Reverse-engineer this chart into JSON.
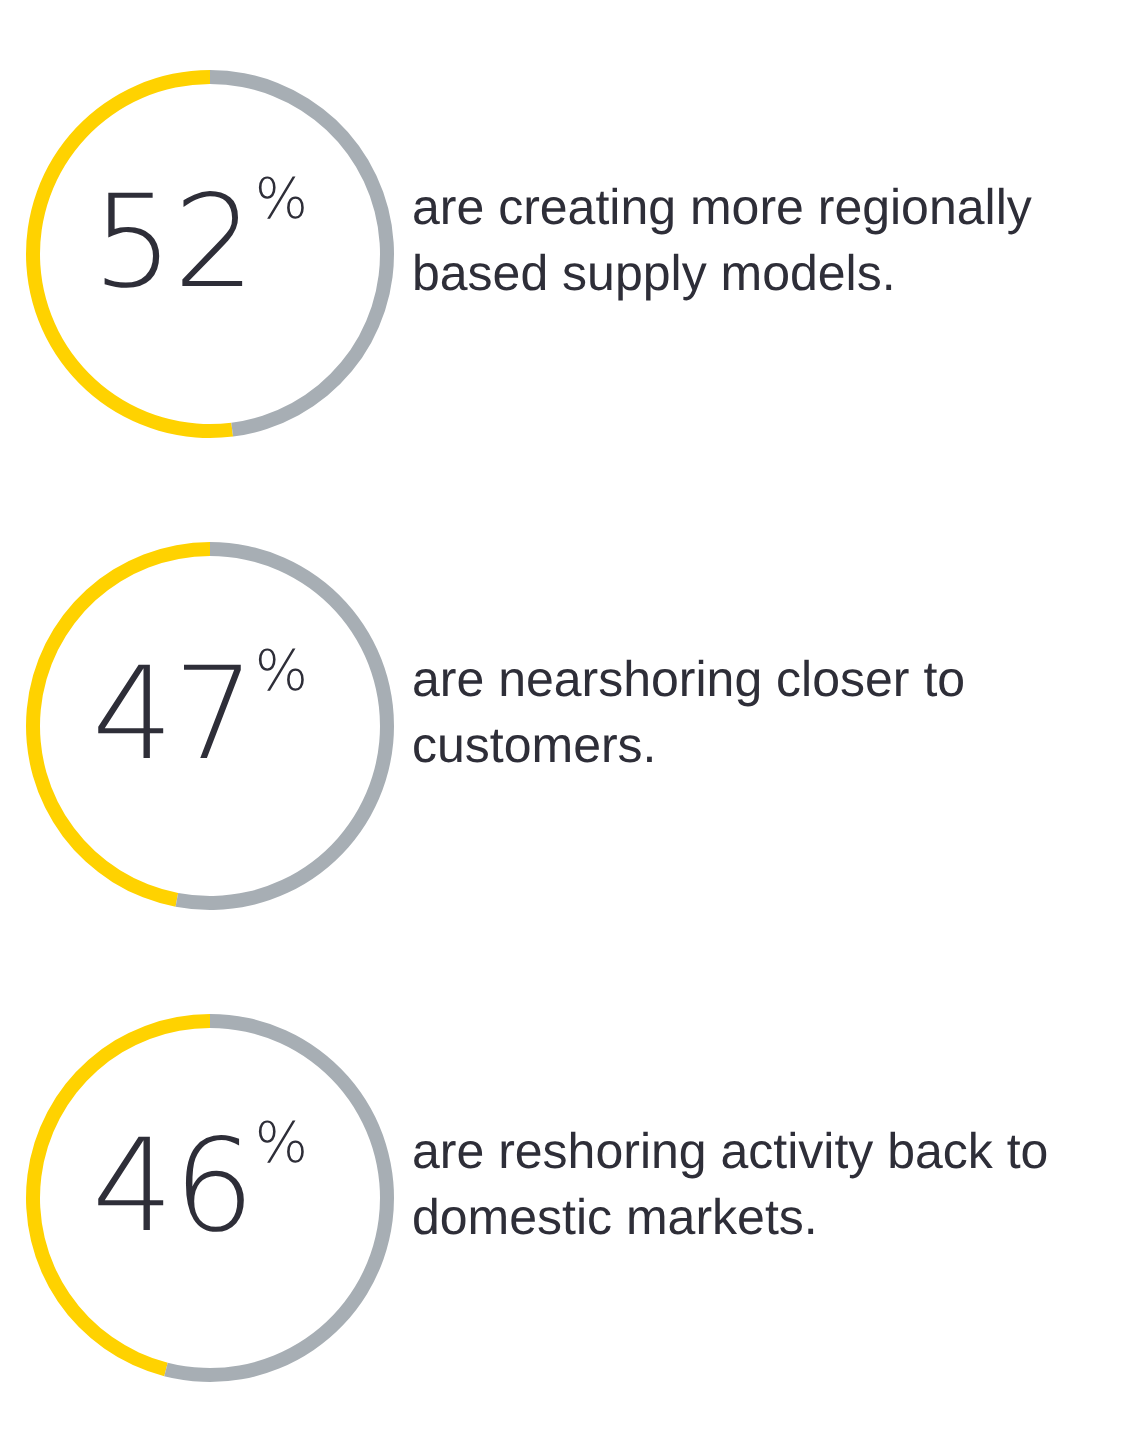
{
  "chart_data": [
    {
      "type": "donut",
      "title": "are creating more regionally based supply models.",
      "categories": [
        null,
        null
      ],
      "values": [
        52,
        48
      ],
      "colors": [
        "#ffd200",
        "#a7aeb4"
      ],
      "value_labels": [
        "52$^{%}$",
        null
      ],
      "legend": false
    },
    {
      "type": "donut",
      "title": "are nearshoring closer to customers.",
      "categories": [
        null,
        null
      ],
      "values": [
        47,
        53
      ],
      "colors": [
        "#ffd200",
        "#a7aeb4"
      ],
      "value_labels": [
        "47$^{%}$",
        null
      ],
      "legend": false
    },
    {
      "type": "donut",
      "title": "are reshoring activity back to domestic markets.",
      "categories": [
        null,
        null
      ],
      "values": [
        46,
        54
      ],
      "colors": [
        "#ffd200",
        "#a7aeb4"
      ],
      "value_labels": [
        "46$^{%}$",
        null
      ],
      "legend": false
    }
  ]
}
